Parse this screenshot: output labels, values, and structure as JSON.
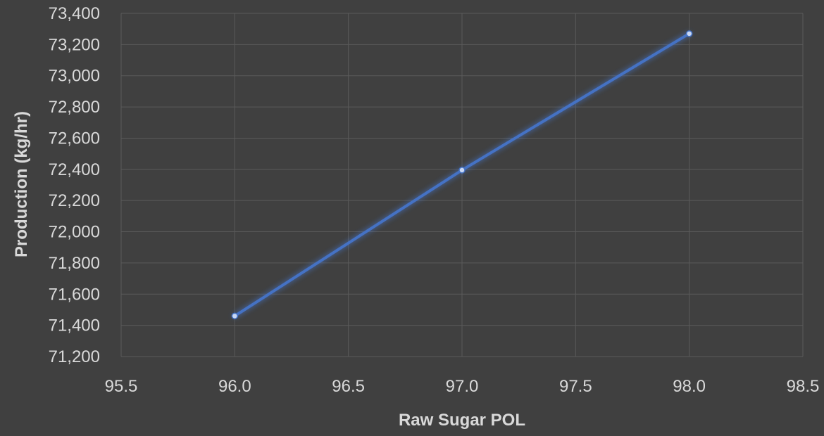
{
  "chart_data": {
    "type": "scatter",
    "title": "",
    "xlabel": "Raw Sugar POL",
    "ylabel": "Production (kg/hr)",
    "xlim": [
      95.5,
      98.5
    ],
    "ylim": [
      71200,
      73400
    ],
    "x_ticks": [
      95.5,
      96.0,
      96.5,
      97.0,
      97.5,
      98.0,
      98.5
    ],
    "x_tick_labels": [
      "95.5",
      "96.0",
      "96.5",
      "97.0",
      "97.5",
      "98.0",
      "98.5"
    ],
    "y_ticks": [
      71200,
      71400,
      71600,
      71800,
      72000,
      72200,
      72400,
      72600,
      72800,
      73000,
      73200,
      73400
    ],
    "y_tick_labels": [
      "71,200",
      "71,400",
      "71,600",
      "71,800",
      "72,000",
      "72,200",
      "72,400",
      "72,600",
      "72,800",
      "73,000",
      "73,200",
      "73,400"
    ],
    "grid": true,
    "legend": "none",
    "series": [
      {
        "x": [
          96.0,
          97.0,
          98.0
        ],
        "y": [
          71460,
          72395,
          73270
        ],
        "color": "#4472C4",
        "line": "straight",
        "markers": true
      }
    ]
  },
  "colors": {
    "background": "#404040",
    "grid": "#5a5a5a",
    "text": "#d9d9d9",
    "series": "#4472C4"
  }
}
